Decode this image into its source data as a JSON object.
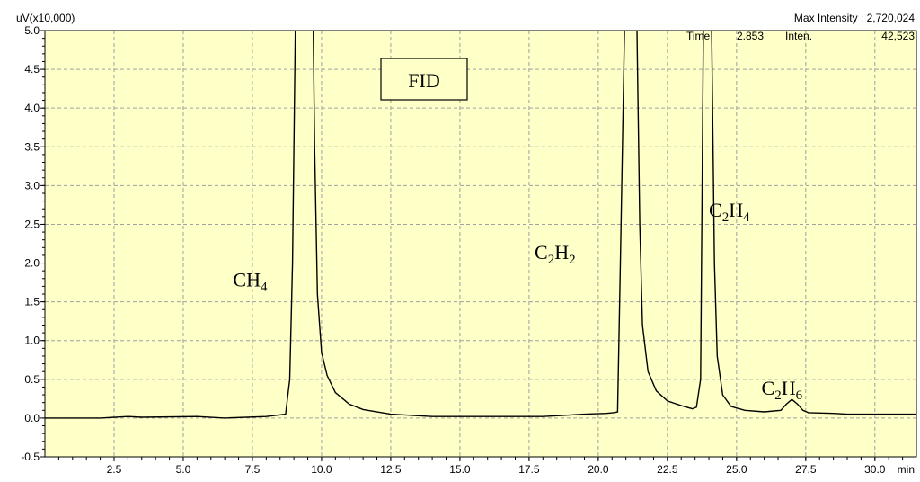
{
  "header": {
    "y_unit": "uV(x10,000)",
    "max_intensity": "Max Intensity : 2,720,024",
    "time_label": "Time",
    "time_value": "2.853",
    "inten_label": "Inten.",
    "inten_value": "42,523"
  },
  "chart_data": {
    "type": "line",
    "title": "",
    "xlabel": "min",
    "ylabel": "uV(x10,000)",
    "xlim": [
      0.0,
      31.5
    ],
    "ylim": [
      -0.5,
      5.0
    ],
    "x_ticks": [
      "2.5",
      "5.0",
      "7.5",
      "10.0",
      "12.5",
      "15.0",
      "17.5",
      "20.0",
      "22.5",
      "25.0",
      "27.5",
      "30.0"
    ],
    "y_ticks": [
      "-0.5",
      "0.0",
      "0.5",
      "1.0",
      "1.5",
      "2.0",
      "2.5",
      "3.0",
      "3.5",
      "4.0",
      "4.5",
      "5.0"
    ],
    "grid": true,
    "detector_label": "FID",
    "series": [
      {
        "name": "",
        "color": "#000000",
        "x": [
          0.0,
          2.0,
          3.0,
          3.5,
          5.5,
          6.5,
          8.0,
          8.7,
          8.85,
          8.95,
          9.05,
          9.7,
          9.75,
          9.85,
          10.0,
          10.2,
          10.5,
          11.0,
          11.5,
          12.5,
          14.0,
          16.0,
          18.0,
          19.5,
          20.3,
          20.55,
          20.7,
          20.8,
          20.95,
          21.4,
          21.5,
          21.6,
          21.8,
          22.1,
          22.5,
          23.0,
          23.4,
          23.55,
          23.7,
          23.8,
          23.9,
          24.0,
          24.1,
          24.2,
          24.3,
          24.5,
          24.8,
          25.3,
          26.0,
          26.6,
          26.8,
          27.0,
          27.2,
          27.4,
          27.6,
          28.5,
          29.0,
          31.5
        ],
        "y": [
          0.0,
          0.0,
          0.02,
          0.01,
          0.02,
          0.0,
          0.02,
          0.05,
          0.5,
          2.0,
          5.0,
          5.0,
          3.5,
          1.6,
          0.85,
          0.55,
          0.33,
          0.18,
          0.11,
          0.05,
          0.02,
          0.02,
          0.02,
          0.05,
          0.06,
          0.07,
          0.08,
          2.0,
          5.0,
          5.0,
          2.5,
          1.2,
          0.6,
          0.35,
          0.22,
          0.16,
          0.12,
          0.14,
          0.5,
          5.0,
          5.0,
          5.0,
          5.0,
          2.0,
          0.8,
          0.3,
          0.15,
          0.1,
          0.08,
          0.1,
          0.18,
          0.24,
          0.18,
          0.1,
          0.07,
          0.06,
          0.05,
          0.05
        ]
      }
    ],
    "annotations": [
      {
        "base": "CH",
        "sub": "4",
        "x": 6.8,
        "y": 1.7
      },
      {
        "base": "C",
        "sub": "2",
        "base2": "H",
        "sub2": "2",
        "x": 17.7,
        "y": 2.05
      },
      {
        "base": "C",
        "sub": "2",
        "base2": "H",
        "sub2": "4",
        "x": 24.0,
        "y": 2.6
      },
      {
        "base": "C",
        "sub": "2",
        "base2": "H",
        "sub2": "6",
        "x": 25.9,
        "y": 0.3
      }
    ]
  }
}
